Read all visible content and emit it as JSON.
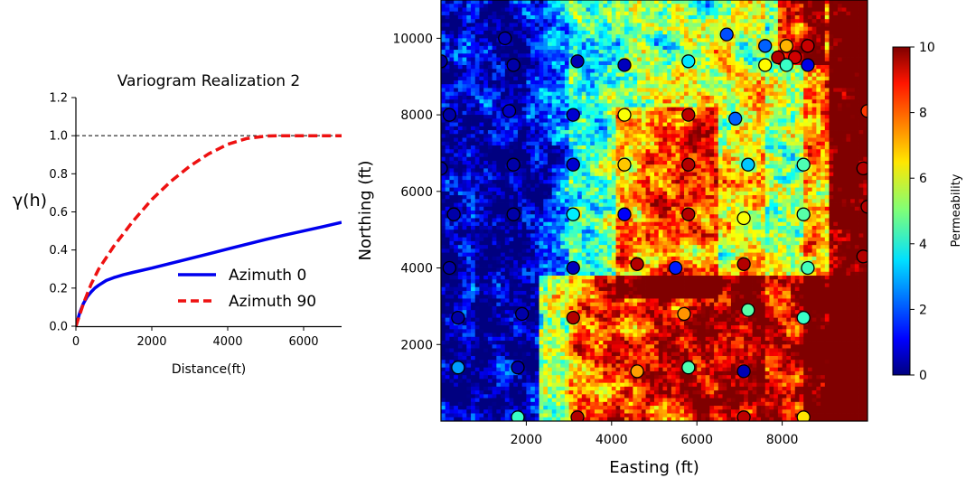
{
  "chart_data": [
    {
      "type": "line",
      "title": "Variogram Realization 2",
      "xlabel": "Distance(ft)",
      "ylabel": "γ(h)",
      "xlim": [
        0,
        7000
      ],
      "ylim": [
        0,
        1.2
      ],
      "xticks": [
        0,
        2000,
        4000,
        6000
      ],
      "yticks": [
        0.0,
        0.2,
        0.4,
        0.6,
        0.8,
        1.0,
        1.2
      ],
      "xtick_labels": [
        "0",
        "2000",
        "4000",
        "6000"
      ],
      "ytick_labels": [
        "0.0",
        "0.2",
        "0.4",
        "0.6",
        "0.8",
        "1.0",
        "1.2"
      ],
      "reference_line": {
        "y": 1.0,
        "style": "dashed",
        "color": "#000000"
      },
      "legend_position": "lower-right",
      "series": [
        {
          "name": "Azimuth 0",
          "color": "#0000ee",
          "style": "solid",
          "x": [
            0,
            100,
            200,
            300,
            400,
            500,
            600,
            800,
            1000,
            1250,
            1500,
            2000,
            2500,
            3000,
            3500,
            4000,
            4500,
            5000,
            5500,
            6000,
            6500,
            7000
          ],
          "y": [
            0.0,
            0.07,
            0.12,
            0.155,
            0.18,
            0.2,
            0.215,
            0.24,
            0.255,
            0.27,
            0.282,
            0.305,
            0.33,
            0.355,
            0.38,
            0.405,
            0.43,
            0.455,
            0.478,
            0.5,
            0.522,
            0.545
          ]
        },
        {
          "name": "Azimuth 90",
          "color": "#ee1111",
          "style": "dashed",
          "x": [
            0,
            200,
            400,
            600,
            800,
            1000,
            1500,
            2000,
            2500,
            3000,
            3500,
            4000,
            4500,
            5000,
            5300,
            5600,
            6000,
            6500,
            7000
          ],
          "y": [
            0.0,
            0.12,
            0.22,
            0.3,
            0.36,
            0.42,
            0.55,
            0.665,
            0.76,
            0.84,
            0.905,
            0.955,
            0.985,
            0.998,
            1.0,
            1.0,
            1.0,
            1.0,
            1.0
          ]
        }
      ]
    },
    {
      "type": "heatmap",
      "xlabel": "Easting (ft)",
      "ylabel": "Northing (ft)",
      "xlim": [
        0,
        10000
      ],
      "ylim": [
        0,
        11000
      ],
      "xticks": [
        2000,
        4000,
        6000,
        8000
      ],
      "yticks": [
        2000,
        4000,
        6000,
        8000,
        10000
      ],
      "xtick_labels": [
        "2000",
        "4000",
        "6000",
        "8000"
      ],
      "ytick_labels": [
        "2000",
        "4000",
        "6000",
        "8000",
        "10000"
      ],
      "colormap": "jet",
      "colorbar": {
        "label": "Permeability",
        "range": [
          0,
          10
        ],
        "ticks": [
          0,
          2,
          4,
          6,
          8,
          10
        ],
        "tick_labels": [
          "0",
          "2",
          "4",
          "6",
          "8",
          "10"
        ]
      },
      "well_points": [
        {
          "x": 0,
          "y": 9400,
          "v": 0.3
        },
        {
          "x": 1500,
          "y": 10000,
          "v": 0.5
        },
        {
          "x": 1700,
          "y": 9300,
          "v": 0.4
        },
        {
          "x": 3200,
          "y": 9400,
          "v": 0.5
        },
        {
          "x": 4300,
          "y": 9300,
          "v": 0.6
        },
        {
          "x": 5800,
          "y": 9400,
          "v": 3.5
        },
        {
          "x": 6700,
          "y": 10100,
          "v": 2.0
        },
        {
          "x": 7600,
          "y": 9800,
          "v": 2.2
        },
        {
          "x": 8100,
          "y": 9800,
          "v": 7.0
        },
        {
          "x": 8600,
          "y": 9800,
          "v": 9.3
        },
        {
          "x": 7600,
          "y": 9300,
          "v": 6.3
        },
        {
          "x": 7900,
          "y": 9500,
          "v": 9.5
        },
        {
          "x": 8300,
          "y": 9500,
          "v": 9.2
        },
        {
          "x": 8100,
          "y": 9300,
          "v": 4.3
        },
        {
          "x": 8600,
          "y": 9300,
          "v": 1.0
        },
        {
          "x": 200,
          "y": 8000,
          "v": 0.4
        },
        {
          "x": 1600,
          "y": 8100,
          "v": 0.7
        },
        {
          "x": 3100,
          "y": 8000,
          "v": 0.8
        },
        {
          "x": 4300,
          "y": 8000,
          "v": 6.2
        },
        {
          "x": 5800,
          "y": 8000,
          "v": 9.4
        },
        {
          "x": 6900,
          "y": 7900,
          "v": 2.2
        },
        {
          "x": 10000,
          "y": 8100,
          "v": 8.2
        },
        {
          "x": 0,
          "y": 6600,
          "v": 0.4
        },
        {
          "x": 1700,
          "y": 6700,
          "v": 0.4
        },
        {
          "x": 3100,
          "y": 6700,
          "v": 0.8
        },
        {
          "x": 4300,
          "y": 6700,
          "v": 6.8
        },
        {
          "x": 5800,
          "y": 6700,
          "v": 9.5
        },
        {
          "x": 7200,
          "y": 6700,
          "v": 3.2
        },
        {
          "x": 8500,
          "y": 6700,
          "v": 4.5
        },
        {
          "x": 9900,
          "y": 6600,
          "v": 9.5
        },
        {
          "x": 300,
          "y": 5400,
          "v": 0.4
        },
        {
          "x": 1700,
          "y": 5400,
          "v": 0.4
        },
        {
          "x": 3100,
          "y": 5400,
          "v": 3.6
        },
        {
          "x": 4300,
          "y": 5400,
          "v": 1.2
        },
        {
          "x": 5800,
          "y": 5400,
          "v": 9.5
        },
        {
          "x": 7100,
          "y": 5300,
          "v": 6.2
        },
        {
          "x": 8500,
          "y": 5400,
          "v": 4.6
        },
        {
          "x": 10000,
          "y": 5600,
          "v": 9.5
        },
        {
          "x": 200,
          "y": 4000,
          "v": 0.4
        },
        {
          "x": 3100,
          "y": 4000,
          "v": 0.6
        },
        {
          "x": 4600,
          "y": 4100,
          "v": 9.5
        },
        {
          "x": 5500,
          "y": 4000,
          "v": 1.5
        },
        {
          "x": 7100,
          "y": 4100,
          "v": 9.5
        },
        {
          "x": 8600,
          "y": 4000,
          "v": 4.4
        },
        {
          "x": 9900,
          "y": 4300,
          "v": 9.5
        },
        {
          "x": 400,
          "y": 2700,
          "v": 0.4
        },
        {
          "x": 1900,
          "y": 2800,
          "v": 0.4
        },
        {
          "x": 3100,
          "y": 2700,
          "v": 9.5
        },
        {
          "x": 5700,
          "y": 2800,
          "v": 7.3
        },
        {
          "x": 7200,
          "y": 2900,
          "v": 4.6
        },
        {
          "x": 8500,
          "y": 2700,
          "v": 4.3
        },
        {
          "x": 400,
          "y": 1400,
          "v": 2.8
        },
        {
          "x": 1800,
          "y": 1400,
          "v": 0.4
        },
        {
          "x": 4600,
          "y": 1300,
          "v": 7.2
        },
        {
          "x": 5800,
          "y": 1400,
          "v": 4.5
        },
        {
          "x": 7100,
          "y": 1300,
          "v": 0.5
        },
        {
          "x": 1800,
          "y": 100,
          "v": 4.3
        },
        {
          "x": 3200,
          "y": 100,
          "v": 9.5
        },
        {
          "x": 7100,
          "y": 100,
          "v": 9.4
        },
        {
          "x": 8500,
          "y": 100,
          "v": 6.5
        }
      ]
    }
  ]
}
